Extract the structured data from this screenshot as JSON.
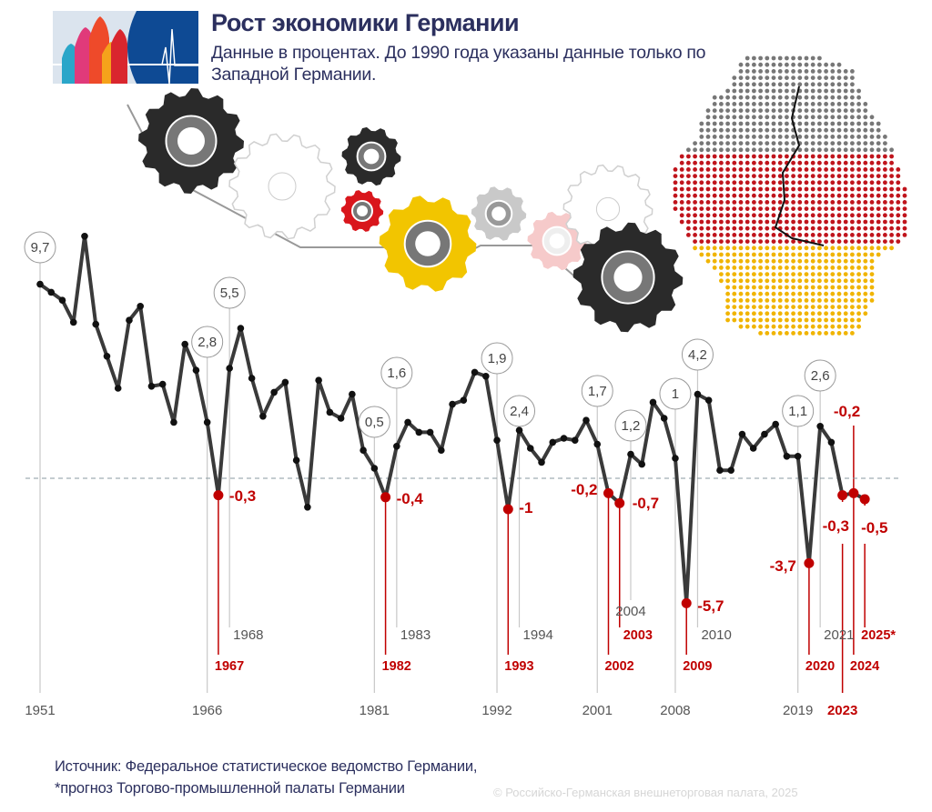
{
  "header": {
    "title": "Рост экономики Германии",
    "subtitle": "Данные в процентах. До 1990 года указаны данные только по Западной Германии."
  },
  "footer": {
    "source": "Источник: Федеральное статистическое ведомство Германии,",
    "note": "*прогноз Торгово-промышленной палаты Германии",
    "copyright": "© Российско-Германская внешнеторговая палата, 2025"
  },
  "colors": {
    "line": "#3a3a3a",
    "negative": "#c00000",
    "title": "#2b2f5e",
    "baseline": "#8a9aa0"
  },
  "chart_data": {
    "type": "line",
    "title": "Рост экономики Германии",
    "xlabel": "",
    "ylabel": "",
    "baseline": 0,
    "grid": false,
    "x": [
      1951,
      1952,
      1953,
      1954,
      1955,
      1956,
      1957,
      1958,
      1959,
      1960,
      1961,
      1962,
      1963,
      1964,
      1965,
      1966,
      1967,
      1968,
      1969,
      1970,
      1971,
      1972,
      1973,
      1974,
      1975,
      1976,
      1977,
      1978,
      1979,
      1980,
      1981,
      1982,
      1983,
      1984,
      1985,
      1986,
      1987,
      1988,
      1989,
      1990,
      1991,
      1992,
      1993,
      1994,
      1995,
      1996,
      1997,
      1998,
      1999,
      2000,
      2001,
      2002,
      2003,
      2004,
      2005,
      2006,
      2007,
      2008,
      2009,
      2010,
      2011,
      2012,
      2013,
      2014,
      2015,
      2016,
      2017,
      2018,
      2019,
      2020,
      2021,
      2022,
      2023,
      2024,
      2025
    ],
    "values": [
      9.7,
      9.3,
      8.9,
      7.8,
      12.1,
      7.7,
      6.1,
      4.5,
      7.9,
      8.6,
      4.6,
      4.7,
      2.8,
      6.7,
      5.4,
      2.8,
      -0.3,
      5.5,
      7.5,
      5.0,
      3.1,
      4.3,
      4.8,
      0.9,
      -0.9,
      4.9,
      3.3,
      3.0,
      4.2,
      1.4,
      0.5,
      -0.4,
      1.6,
      2.8,
      2.3,
      2.3,
      1.4,
      3.7,
      3.9,
      5.3,
      5.1,
      1.9,
      -1.0,
      2.4,
      1.5,
      0.8,
      1.8,
      2.0,
      1.9,
      2.9,
      1.7,
      -0.2,
      -0.7,
      1.2,
      0.7,
      3.8,
      3.0,
      1.0,
      -5.7,
      4.2,
      3.9,
      0.4,
      0.4,
      2.2,
      1.5,
      2.2,
      2.7,
      1.1,
      1.1,
      -3.7,
      2.6,
      1.8,
      -0.3,
      -0.2,
      -0.5
    ],
    "forecast": [
      2025
    ],
    "axis_ticks": [
      "1951",
      "1966",
      "1981",
      "1992",
      "2001",
      "2008",
      "2019",
      "2023"
    ],
    "annotations": [
      {
        "year": "1951",
        "label": "9,7",
        "kind": "positive"
      },
      {
        "year": "1966",
        "label": "2,8",
        "kind": "positive"
      },
      {
        "year": "1967",
        "label": "-0,3",
        "kind": "negative"
      },
      {
        "year": "1968",
        "label": "5,5",
        "kind": "positive"
      },
      {
        "year": "1981",
        "label": "0,5",
        "kind": "positive"
      },
      {
        "year": "1982",
        "label": "-0,4",
        "kind": "negative"
      },
      {
        "year": "1983",
        "label": "1,6",
        "kind": "positive"
      },
      {
        "year": "1992",
        "label": "1,9",
        "kind": "positive"
      },
      {
        "year": "1993",
        "label": "-1",
        "kind": "negative"
      },
      {
        "year": "1994",
        "label": "2,4",
        "kind": "positive"
      },
      {
        "year": "2001",
        "label": "1,7",
        "kind": "positive"
      },
      {
        "year": "2002",
        "label": "-0,2",
        "kind": "negative"
      },
      {
        "year": "2003",
        "label": "-0,7",
        "kind": "negative"
      },
      {
        "year": "2004",
        "label": "1,2",
        "kind": "positive"
      },
      {
        "year": "2008",
        "label": "1",
        "kind": "positive"
      },
      {
        "year": "2009",
        "label": "-5,7",
        "kind": "negative"
      },
      {
        "year": "2010",
        "label": "4,2",
        "kind": "positive"
      },
      {
        "year": "2019",
        "label": "1,1",
        "kind": "positive"
      },
      {
        "year": "2020",
        "label": "-3,7",
        "kind": "negative"
      },
      {
        "year": "2021",
        "label": "2,6",
        "kind": "positive"
      },
      {
        "year": "2023",
        "label": "-0,3",
        "kind": "negative"
      },
      {
        "year": "2024",
        "label": "-0,2",
        "kind": "negative"
      },
      {
        "year": "2025*",
        "label": "-0,5",
        "kind": "negative"
      }
    ]
  },
  "illustration": {
    "gears": "gear-icons",
    "map": "germany-flag-dot-map"
  }
}
